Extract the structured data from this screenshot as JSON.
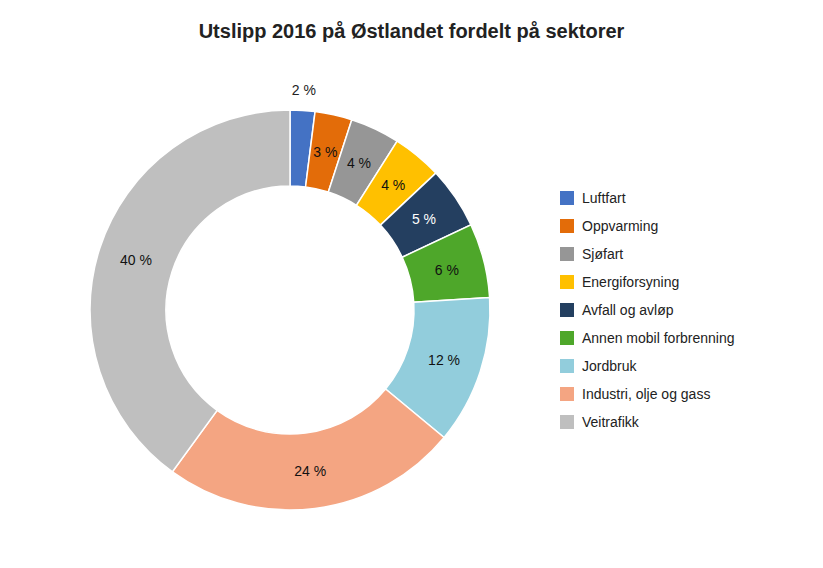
{
  "chart_data": {
    "type": "donut",
    "title": "Utslipp 2016 på Østlandet fordelt på sektorer",
    "categories": [
      "Luftfart",
      "Oppvarming",
      "Sjøfart",
      "Energiforsyning",
      "Avfall og avløp",
      "Annen mobil forbrenning",
      "Jordbruk",
      "Industri, olje og gass",
      "Veitrafikk"
    ],
    "values": [
      2,
      3,
      4,
      4,
      5,
      6,
      12,
      24,
      40
    ],
    "value_labels": [
      "2 %",
      "3 %",
      "4 %",
      "4 %",
      "5 %",
      "6 %",
      "12 %",
      "24 %",
      "40 %"
    ],
    "colors": [
      "#4472C4",
      "#E36C09",
      "#969696",
      "#FFC000",
      "#243F60",
      "#4EA72A",
      "#92CDDC",
      "#F4A582",
      "#BFBFBF"
    ],
    "data_labels": true,
    "legend": "right"
  }
}
